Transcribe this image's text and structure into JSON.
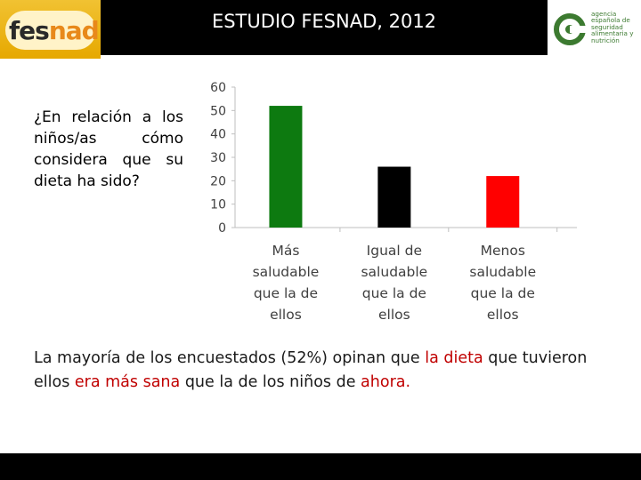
{
  "header": {
    "title": "ESTUDIO FESNAD, 2012",
    "logo_left": {
      "part1": "fes",
      "part2": "nad"
    },
    "logo_right": {
      "lines": [
        "agencia",
        "española de",
        "seguridad",
        "alimentaria y",
        "nutrición"
      ]
    }
  },
  "question": "¿En relación a los niños/as cómo considera que su dieta ha sido?",
  "chart_data": {
    "type": "bar",
    "categories": [
      [
        "Más",
        "saludable",
        "que la de",
        "ellos"
      ],
      [
        "Igual de",
        "saludable",
        "que la de",
        "ellos"
      ],
      [
        "Menos",
        "saludable",
        "que la de",
        "ellos"
      ]
    ],
    "values": [
      52,
      26,
      22
    ],
    "colors": [
      "#0d7a10",
      "#000000",
      "#ff0000"
    ],
    "ylim": [
      0,
      60
    ],
    "yticks": [
      0,
      10,
      20,
      30,
      40,
      50,
      60
    ],
    "grid": false,
    "title": "",
    "xlabel": "",
    "ylabel": ""
  },
  "conclusion": {
    "parts": [
      {
        "text": "La mayoría de los encuestados (52%) opinan que ",
        "highlight": false
      },
      {
        "text": "la dieta",
        "highlight": true
      },
      {
        "text": " que tuvieron ellos ",
        "highlight": false
      },
      {
        "text": "era más sana",
        "highlight": true
      },
      {
        "text": " que la de los niños de ",
        "highlight": false
      },
      {
        "text": "ahora.",
        "highlight": true
      }
    ]
  },
  "colors": {
    "highlight": "#c00000",
    "logo_orange": "#e8891a",
    "logo_green": "#3c7a30"
  }
}
